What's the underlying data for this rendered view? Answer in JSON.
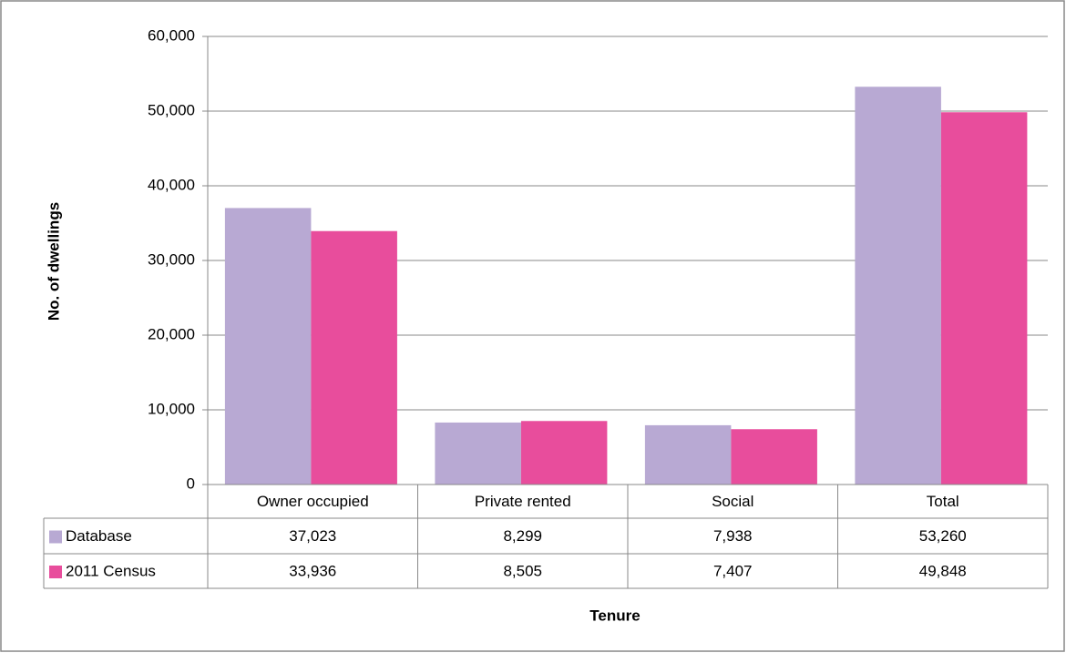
{
  "chart_data": {
    "type": "bar",
    "y_label": "No. of dwellings",
    "x_label": "Tenure",
    "categories": [
      "Owner occupied",
      "Private rented",
      "Social",
      "Total"
    ],
    "series": [
      {
        "name": "Database",
        "color": "#b8a9d3",
        "values": [
          37023,
          8299,
          7938,
          53260
        ],
        "value_labels": [
          "37,023",
          "8,299",
          "7,938",
          "53,260"
        ]
      },
      {
        "name": "2011 Census",
        "color": "#e84d9c",
        "values": [
          33936,
          8505,
          7407,
          49848
        ],
        "value_labels": [
          "33,936",
          "8,505",
          "7,407",
          "49,848"
        ]
      }
    ],
    "ylim": [
      0,
      60000
    ],
    "yticks": [
      0,
      {
        "value": 10000,
        "label": "10,000"
      },
      {
        "value": 20000,
        "label": "20,000"
      },
      {
        "value": 30000,
        "label": "30,000"
      },
      {
        "value": 40000,
        "label": "40,000"
      },
      {
        "value": 50000,
        "label": "50,000"
      },
      {
        "value": 60000,
        "label": "60,000"
      }
    ],
    "grid": true,
    "data_table": true
  }
}
